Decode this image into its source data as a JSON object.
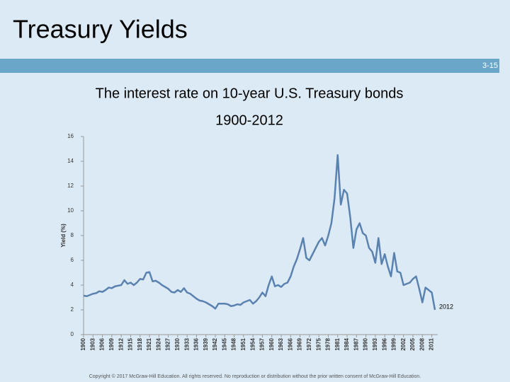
{
  "header": {
    "title": "Treasury Yields",
    "slide_number": "3-15"
  },
  "chart_data": {
    "type": "line",
    "title": "The interest rate on 10-year U.S. Treasury bonds",
    "subtitle": "1900-2012",
    "y_label": "Yield (%)",
    "annotation": "2012",
    "color": "#5a82b0",
    "x": [
      1900,
      1901,
      1902,
      1903,
      1904,
      1905,
      1906,
      1907,
      1908,
      1909,
      1910,
      1911,
      1912,
      1913,
      1914,
      1915,
      1916,
      1917,
      1918,
      1919,
      1920,
      1921,
      1922,
      1923,
      1924,
      1925,
      1926,
      1927,
      1928,
      1929,
      1930,
      1931,
      1932,
      1933,
      1934,
      1935,
      1936,
      1937,
      1938,
      1939,
      1940,
      1941,
      1942,
      1943,
      1944,
      1945,
      1946,
      1947,
      1948,
      1949,
      1950,
      1951,
      1952,
      1953,
      1954,
      1955,
      1956,
      1957,
      1958,
      1959,
      1960,
      1961,
      1962,
      1963,
      1964,
      1965,
      1966,
      1967,
      1968,
      1969,
      1970,
      1971,
      1972,
      1973,
      1974,
      1975,
      1976,
      1977,
      1978,
      1979,
      1980,
      1981,
      1982,
      1983,
      1984,
      1985,
      1986,
      1987,
      1988,
      1989,
      1990,
      1991,
      1992,
      1993,
      1994,
      1995,
      1996,
      1997,
      1998,
      1999,
      2000,
      2001,
      2002,
      2003,
      2004,
      2005,
      2006,
      2007,
      2008,
      2009,
      2010,
      2011,
      2012
    ],
    "values": [
      3.15,
      3.1,
      3.2,
      3.3,
      3.35,
      3.5,
      3.45,
      3.6,
      3.8,
      3.75,
      3.9,
      3.95,
      4.0,
      4.4,
      4.1,
      4.2,
      4.0,
      4.2,
      4.5,
      4.45,
      5.0,
      5.05,
      4.3,
      4.35,
      4.2,
      4.0,
      3.85,
      3.7,
      3.45,
      3.4,
      3.6,
      3.45,
      3.75,
      3.4,
      3.3,
      3.1,
      2.9,
      2.75,
      2.7,
      2.6,
      2.45,
      2.3,
      2.1,
      2.5,
      2.5,
      2.5,
      2.45,
      2.3,
      2.35,
      2.45,
      2.4,
      2.6,
      2.7,
      2.8,
      2.5,
      2.7,
      3.0,
      3.4,
      3.1,
      4.0,
      4.7,
      3.9,
      4.0,
      3.85,
      4.1,
      4.2,
      4.7,
      5.5,
      6.1,
      6.9,
      7.8,
      6.2,
      6.0,
      6.5,
      7.0,
      7.5,
      7.8,
      7.2,
      8.0,
      9.0,
      11.0,
      14.5,
      10.5,
      11.7,
      11.4,
      9.5,
      7.0,
      8.5,
      9.0,
      8.2,
      8.0,
      7.0,
      6.7,
      5.8,
      7.8,
      5.7,
      6.5,
      5.5,
      4.7,
      6.6,
      5.1,
      5.0,
      4.0,
      4.1,
      4.2,
      4.5,
      4.7,
      3.7,
      2.6,
      3.8,
      3.6,
      3.4,
      2.0
    ],
    "xlim": [
      1900,
      2012
    ],
    "xticks": [
      1900,
      1903,
      1906,
      1909,
      1912,
      1915,
      1918,
      1921,
      1924,
      1927,
      1930,
      1933,
      1936,
      1939,
      1942,
      1945,
      1948,
      1951,
      1954,
      1957,
      1960,
      1963,
      1966,
      1969,
      1972,
      1975,
      1978,
      1981,
      1984,
      1987,
      1990,
      1993,
      1996,
      1999,
      2002,
      2005,
      2008,
      2011
    ],
    "ylim": [
      0,
      16
    ],
    "yticks": [
      0,
      2,
      4,
      6,
      8,
      10,
      12,
      14,
      16
    ],
    "grid": false
  },
  "footer": {
    "copyright": "Copyright © 2017 McGraw-Hill Education. All rights reserved. No reproduction or distribution without the prior written consent of McGraw-Hill Education."
  }
}
